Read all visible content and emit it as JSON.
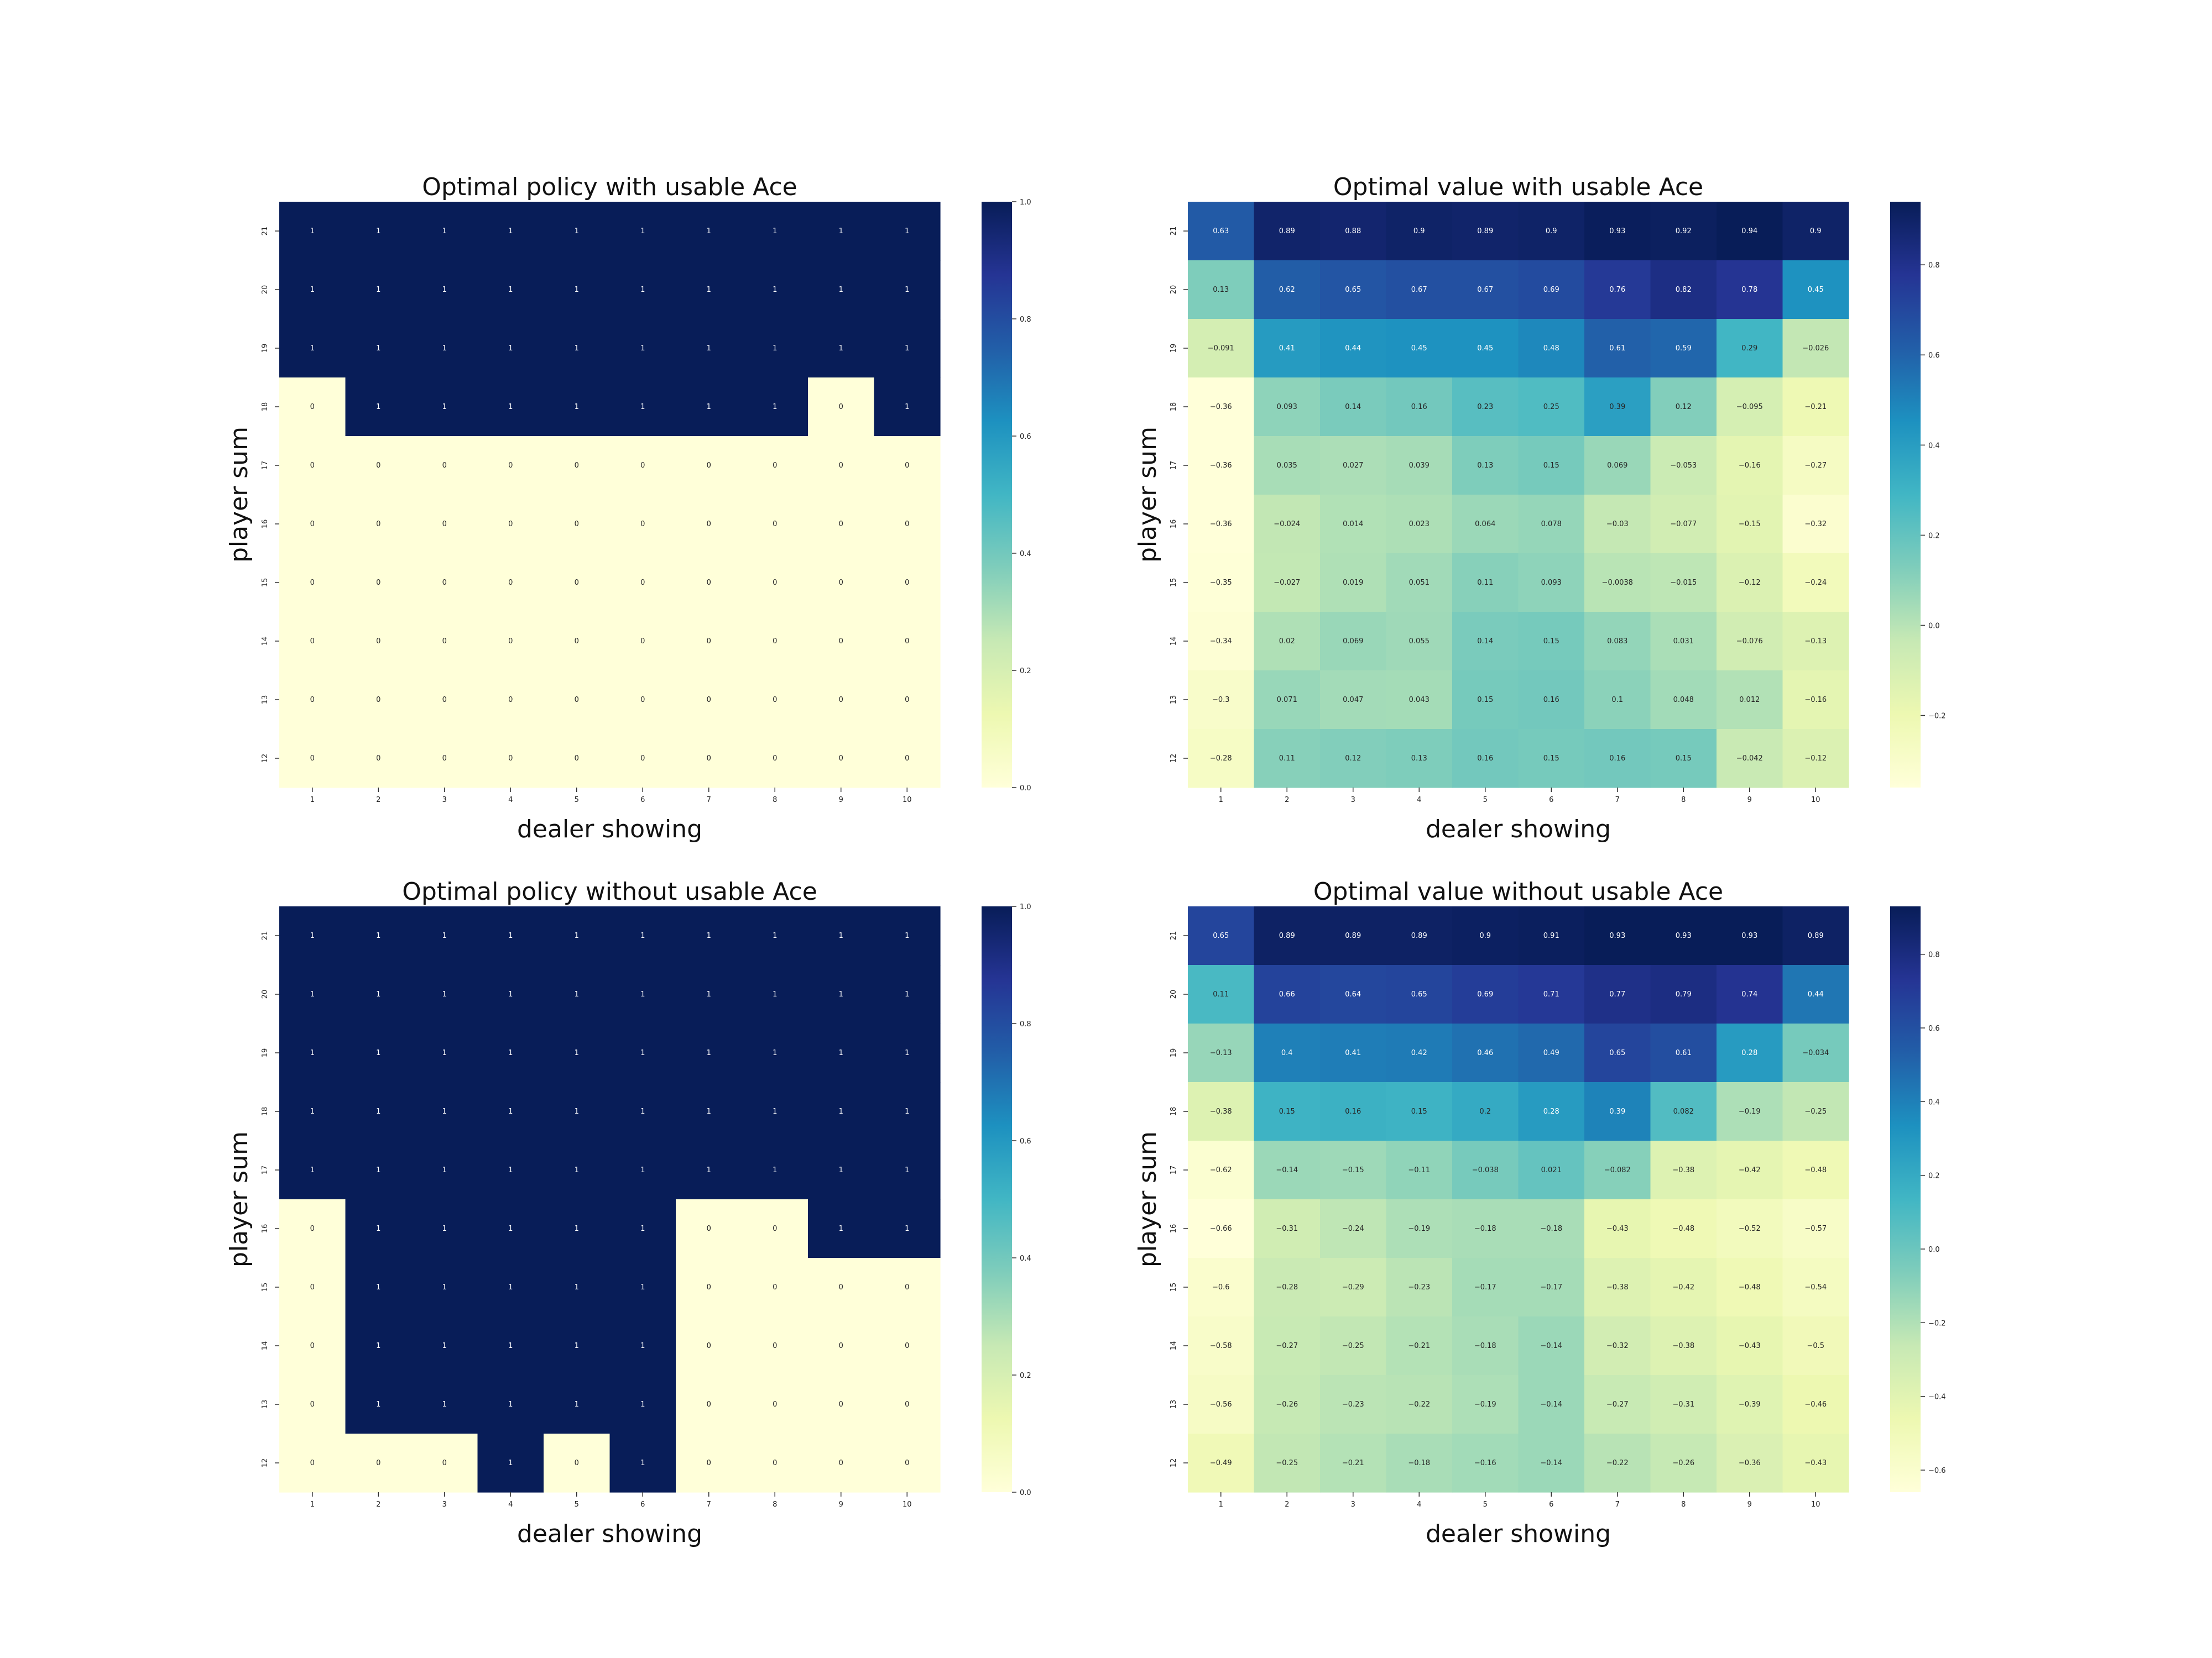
{
  "colormap": [
    "#ffffd9",
    "#edf8b1",
    "#c7e9b4",
    "#7fcdbb",
    "#41b6c4",
    "#1d91c0",
    "#225ea8",
    "#253494",
    "#081d58"
  ],
  "chart_data": [
    {
      "type": "heatmap",
      "title": "Optimal policy with usable Ace",
      "xlabel": "dealer showing",
      "ylabel": "player sum",
      "x": [
        1,
        2,
        3,
        4,
        5,
        6,
        7,
        8,
        9,
        10
      ],
      "y": [
        21,
        20,
        19,
        18,
        17,
        16,
        15,
        14,
        13,
        12
      ],
      "values": [
        [
          1,
          1,
          1,
          1,
          1,
          1,
          1,
          1,
          1,
          1
        ],
        [
          1,
          1,
          1,
          1,
          1,
          1,
          1,
          1,
          1,
          1
        ],
        [
          1,
          1,
          1,
          1,
          1,
          1,
          1,
          1,
          1,
          1
        ],
        [
          0,
          1,
          1,
          1,
          1,
          1,
          1,
          1,
          0,
          1
        ],
        [
          0,
          0,
          0,
          0,
          0,
          0,
          0,
          0,
          0,
          0
        ],
        [
          0,
          0,
          0,
          0,
          0,
          0,
          0,
          0,
          0,
          0
        ],
        [
          0,
          0,
          0,
          0,
          0,
          0,
          0,
          0,
          0,
          0
        ],
        [
          0,
          0,
          0,
          0,
          0,
          0,
          0,
          0,
          0,
          0
        ],
        [
          0,
          0,
          0,
          0,
          0,
          0,
          0,
          0,
          0,
          0
        ],
        [
          0,
          0,
          0,
          0,
          0,
          0,
          0,
          0,
          0,
          0
        ]
      ],
      "vmin": 0,
      "vmax": 1,
      "colorbar_ticks": [
        "0.0",
        "0.2",
        "0.4",
        "0.6",
        "0.8",
        "1.0"
      ]
    },
    {
      "type": "heatmap",
      "title": "Optimal value with usable Ace",
      "xlabel": "dealer showing",
      "ylabel": "player sum",
      "x": [
        1,
        2,
        3,
        4,
        5,
        6,
        7,
        8,
        9,
        10
      ],
      "y": [
        21,
        20,
        19,
        18,
        17,
        16,
        15,
        14,
        13,
        12
      ],
      "values": [
        [
          0.63,
          0.89,
          0.88,
          0.9,
          0.89,
          0.9,
          0.93,
          0.92,
          0.94,
          0.9
        ],
        [
          0.13,
          0.62,
          0.65,
          0.67,
          0.67,
          0.69,
          0.76,
          0.82,
          0.78,
          0.45
        ],
        [
          -0.091,
          0.41,
          0.44,
          0.45,
          0.45,
          0.48,
          0.61,
          0.59,
          0.29,
          -0.026
        ],
        [
          -0.36,
          0.093,
          0.14,
          0.16,
          0.23,
          0.25,
          0.39,
          0.12,
          -0.095,
          -0.21
        ],
        [
          -0.36,
          0.035,
          0.027,
          0.039,
          0.13,
          0.15,
          0.069,
          -0.053,
          -0.16,
          -0.27
        ],
        [
          -0.36,
          -0.024,
          0.014,
          0.023,
          0.064,
          0.078,
          -0.03,
          -0.077,
          -0.15,
          -0.32
        ],
        [
          -0.35,
          -0.027,
          0.019,
          0.051,
          0.11,
          0.093,
          -0.0038,
          -0.015,
          -0.12,
          -0.24
        ],
        [
          -0.34,
          0.02,
          0.069,
          0.055,
          0.14,
          0.15,
          0.083,
          0.031,
          -0.076,
          -0.13
        ],
        [
          -0.3,
          0.071,
          0.047,
          0.043,
          0.15,
          0.16,
          0.1,
          0.048,
          0.012,
          -0.16
        ],
        [
          -0.28,
          0.11,
          0.12,
          0.13,
          0.16,
          0.15,
          0.16,
          0.15,
          -0.042,
          -0.12
        ]
      ],
      "vmin": -0.36,
      "vmax": 0.94,
      "colorbar_ticks": [
        "−0.2",
        "0.0",
        "0.2",
        "0.4",
        "0.6",
        "0.8"
      ]
    },
    {
      "type": "heatmap",
      "title": "Optimal policy without usable Ace",
      "xlabel": "dealer showing",
      "ylabel": "player sum",
      "x": [
        1,
        2,
        3,
        4,
        5,
        6,
        7,
        8,
        9,
        10
      ],
      "y": [
        21,
        20,
        19,
        18,
        17,
        16,
        15,
        14,
        13,
        12
      ],
      "values": [
        [
          1,
          1,
          1,
          1,
          1,
          1,
          1,
          1,
          1,
          1
        ],
        [
          1,
          1,
          1,
          1,
          1,
          1,
          1,
          1,
          1,
          1
        ],
        [
          1,
          1,
          1,
          1,
          1,
          1,
          1,
          1,
          1,
          1
        ],
        [
          1,
          1,
          1,
          1,
          1,
          1,
          1,
          1,
          1,
          1
        ],
        [
          1,
          1,
          1,
          1,
          1,
          1,
          1,
          1,
          1,
          1
        ],
        [
          0,
          1,
          1,
          1,
          1,
          1,
          0,
          0,
          1,
          1
        ],
        [
          0,
          1,
          1,
          1,
          1,
          1,
          0,
          0,
          0,
          0
        ],
        [
          0,
          1,
          1,
          1,
          1,
          1,
          0,
          0,
          0,
          0
        ],
        [
          0,
          1,
          1,
          1,
          1,
          1,
          0,
          0,
          0,
          0
        ],
        [
          0,
          0,
          0,
          1,
          0,
          1,
          0,
          0,
          0,
          0
        ]
      ],
      "vmin": 0,
      "vmax": 1,
      "colorbar_ticks": [
        "0.0",
        "0.2",
        "0.4",
        "0.6",
        "0.8",
        "1.0"
      ]
    },
    {
      "type": "heatmap",
      "title": "Optimal value without usable Ace",
      "xlabel": "dealer showing",
      "ylabel": "player sum",
      "x": [
        1,
        2,
        3,
        4,
        5,
        6,
        7,
        8,
        9,
        10
      ],
      "y": [
        21,
        20,
        19,
        18,
        17,
        16,
        15,
        14,
        13,
        12
      ],
      "values": [
        [
          0.65,
          0.89,
          0.89,
          0.89,
          0.9,
          0.91,
          0.93,
          0.93,
          0.93,
          0.89
        ],
        [
          0.11,
          0.66,
          0.64,
          0.65,
          0.69,
          0.71,
          0.77,
          0.79,
          0.74,
          0.44
        ],
        [
          -0.13,
          0.4,
          0.41,
          0.42,
          0.46,
          0.49,
          0.65,
          0.61,
          0.28,
          -0.034
        ],
        [
          -0.38,
          0.15,
          0.16,
          0.15,
          0.2,
          0.28,
          0.39,
          0.082,
          -0.19,
          -0.25
        ],
        [
          -0.62,
          -0.14,
          -0.15,
          -0.11,
          -0.038,
          0.021,
          -0.082,
          -0.38,
          -0.42,
          -0.48
        ],
        [
          -0.66,
          -0.31,
          -0.24,
          -0.19,
          -0.18,
          -0.18,
          -0.43,
          -0.48,
          -0.52,
          -0.57
        ],
        [
          -0.6,
          -0.28,
          -0.29,
          -0.23,
          -0.17,
          -0.17,
          -0.38,
          -0.42,
          -0.48,
          -0.54
        ],
        [
          -0.58,
          -0.27,
          -0.25,
          -0.21,
          -0.18,
          -0.14,
          -0.32,
          -0.38,
          -0.43,
          -0.5
        ],
        [
          -0.56,
          -0.26,
          -0.23,
          -0.22,
          -0.19,
          -0.14,
          -0.27,
          -0.31,
          -0.39,
          -0.46
        ],
        [
          -0.49,
          -0.25,
          -0.21,
          -0.18,
          -0.16,
          -0.14,
          -0.22,
          -0.26,
          -0.36,
          -0.43
        ]
      ],
      "vmin": -0.66,
      "vmax": 0.93,
      "colorbar_ticks": [
        "−0.6",
        "−0.4",
        "−0.2",
        "0.0",
        "0.2",
        "0.4",
        "0.6",
        "0.8"
      ]
    }
  ]
}
